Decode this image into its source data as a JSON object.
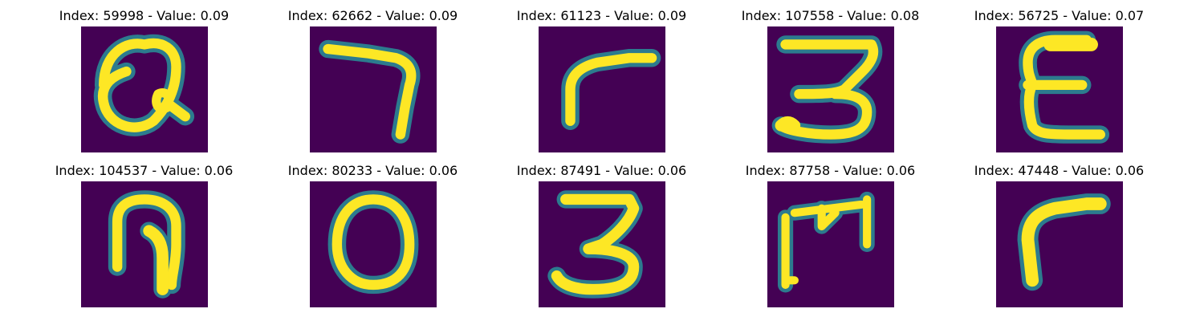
{
  "colors": {
    "background": "#440154",
    "glyph_core": "#fde725",
    "glyph_edge": "#21918c",
    "glyph_halo": "#2c7b8e"
  },
  "panels": [
    {
      "title": "Index: 59998 - Value: 0.09",
      "glyph": "Q"
    },
    {
      "title": "Index: 62662 - Value: 0.09",
      "glyph": "7"
    },
    {
      "title": "Index: 61123 - Value: 0.09",
      "glyph": "r"
    },
    {
      "title": "Index: 107558 - Value: 0.08",
      "glyph": "3"
    },
    {
      "title": "Index: 56725 - Value: 0.07",
      "glyph": "E"
    },
    {
      "title": "Index: 104537 - Value: 0.06",
      "glyph": "P"
    },
    {
      "title": "Index: 80233 - Value: 0.06",
      "glyph": "O"
    },
    {
      "title": "Index: 87491 - Value: 0.06",
      "glyph": "3"
    },
    {
      "title": "Index: 87758 - Value: 0.06",
      "glyph": "M"
    },
    {
      "title": "Index: 47448 - Value: 0.06",
      "glyph": "r"
    }
  ]
}
